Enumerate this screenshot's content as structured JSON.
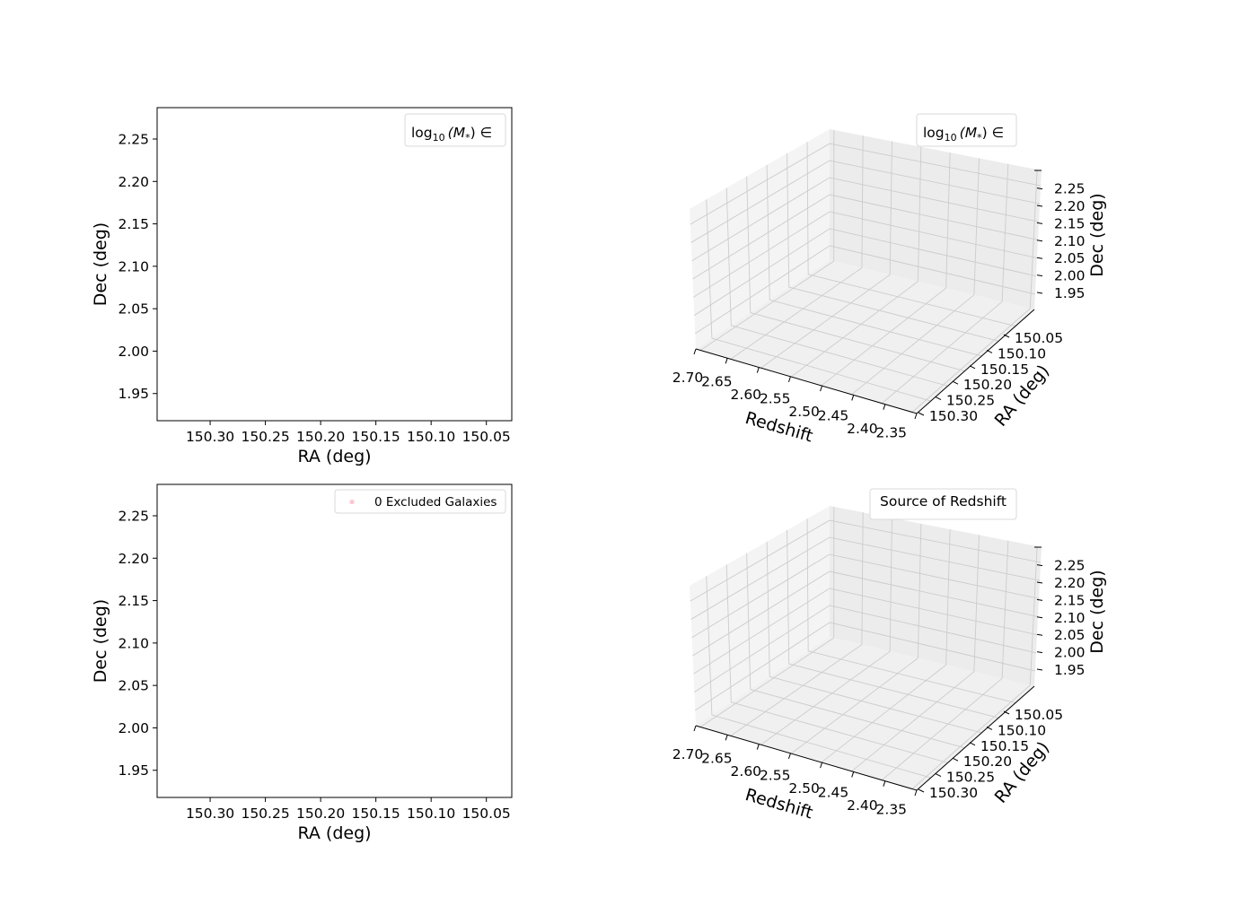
{
  "chart_data": [
    {
      "type": "scatter",
      "panel": "top-left",
      "xlabel": "RA (deg)",
      "ylabel": "Dec (deg)",
      "xticks": [
        "150.30",
        "150.25",
        "150.20",
        "150.15",
        "150.10",
        "150.05"
      ],
      "yticks": [
        "1.95",
        "2.00",
        "2.05",
        "2.10",
        "2.15",
        "2.20",
        "2.25"
      ],
      "xlim": [
        150.348,
        150.027
      ],
      "ylim": [
        1.918,
        2.287
      ],
      "x_inverted": true,
      "legend": {
        "title_prefix": "log",
        "title_sub": "10",
        "title_suffix": "(M",
        "title_star": "*",
        "title_end": ") ∈",
        "placement": "upper right",
        "entries": []
      },
      "points": []
    },
    {
      "type": "scatter",
      "panel": "top-right",
      "projection": "3d",
      "xlabel": "Redshift",
      "ylabel": "RA (deg)",
      "zlabel": "Dec (deg)",
      "xticks": [
        "2.70",
        "2.65",
        "2.60",
        "2.55",
        "2.50",
        "2.45",
        "2.40",
        "2.35"
      ],
      "yticks": [
        "150.05",
        "150.10",
        "150.15",
        "150.20",
        "150.25",
        "150.30"
      ],
      "zticks": [
        "1.95",
        "2.00",
        "2.05",
        "2.10",
        "2.15",
        "2.20",
        "2.25"
      ],
      "legend": {
        "title_prefix": "log",
        "title_sub": "10",
        "title_suffix": "(M",
        "title_star": "*",
        "title_end": ") ∈",
        "placement": "upper right",
        "entries": []
      },
      "points": []
    },
    {
      "type": "scatter",
      "panel": "bottom-left",
      "xlabel": "RA (deg)",
      "ylabel": "Dec (deg)",
      "xticks": [
        "150.30",
        "150.25",
        "150.20",
        "150.15",
        "150.10",
        "150.05"
      ],
      "yticks": [
        "1.95",
        "2.00",
        "2.05",
        "2.10",
        "2.15",
        "2.20",
        "2.25"
      ],
      "xlim": [
        150.348,
        150.027
      ],
      "ylim": [
        1.918,
        2.287
      ],
      "x_inverted": true,
      "legend": {
        "placement": "upper right",
        "entries": [
          {
            "label": "0 Excluded Galaxies",
            "color": "#ffc0cb"
          }
        ]
      },
      "points": []
    },
    {
      "type": "scatter",
      "panel": "bottom-right",
      "projection": "3d",
      "xlabel": "Redshift",
      "ylabel": "RA (deg)",
      "zlabel": "Dec (deg)",
      "xticks": [
        "2.70",
        "2.65",
        "2.60",
        "2.55",
        "2.50",
        "2.45",
        "2.40",
        "2.35"
      ],
      "yticks": [
        "150.05",
        "150.10",
        "150.15",
        "150.20",
        "150.25",
        "150.30"
      ],
      "zticks": [
        "1.95",
        "2.00",
        "2.05",
        "2.10",
        "2.15",
        "2.20",
        "2.25"
      ],
      "legend": {
        "title": "Source of Redshift",
        "placement": "upper right",
        "entries": []
      },
      "points": []
    }
  ],
  "colors": {
    "pane_fill": "#f2f2f2",
    "grid": "#cccccc",
    "legend_border": "#d9d9d9",
    "excluded_marker": "#ffc0cb"
  }
}
